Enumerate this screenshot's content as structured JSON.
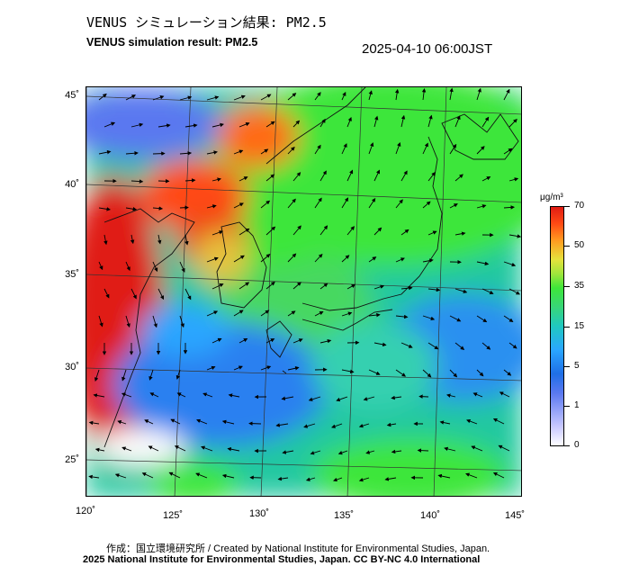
{
  "header": {
    "title_jp": "VENUS シミュレーション結果: PM2.5",
    "title_en": "VENUS simulation result: PM2.5",
    "timestamp": "2025-04-10 06:00JST"
  },
  "map": {
    "region": "East Asia / Japan",
    "lat_labels": [
      "45˚",
      "40˚",
      "35˚",
      "30˚",
      "25˚"
    ],
    "lon_labels": [
      "120˚",
      "125˚",
      "130˚",
      "135˚",
      "140˚",
      "145˚"
    ],
    "colors": {
      "very_high": "#e01c14",
      "high": "#ff6a18",
      "moderate": "#3ee63a",
      "low": "#2aa6ff",
      "clean": "#ffffff"
    }
  },
  "legend": {
    "unit": "μg/m³",
    "ticks": [
      "70",
      "50",
      "35",
      "15",
      "5",
      "1",
      "0"
    ]
  },
  "footer": {
    "credit_line": "作成：国立環境研究所 / Created by National Institute for Environmental Studies, Japan.",
    "license_line": "2025 National Institute for Environmental Studies, Japan. CC BY-NC 4.0 International"
  }
}
